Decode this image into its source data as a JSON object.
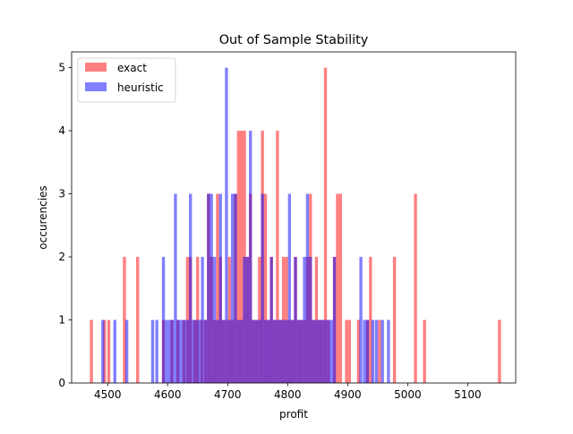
{
  "chart_data": {
    "type": "histogram",
    "title": "Out of Sample Stability",
    "xlabel": "profit",
    "ylabel": "occurencies",
    "xlim": [
      4440,
      5180
    ],
    "ylim": [
      0,
      5.25
    ],
    "xticks": [
      4500,
      4600,
      4700,
      4800,
      4900,
      5000,
      5100
    ],
    "yticks": [
      0,
      1,
      2,
      3,
      4,
      5
    ],
    "bin_width": 5,
    "grid": false,
    "legend_position": "top-left",
    "series": [
      {
        "name": "exact",
        "color": "#ff0000",
        "alpha": 0.5,
        "bins": [
          [
            4473,
            1
          ],
          [
            4495,
            1
          ],
          [
            4502,
            1
          ],
          [
            4528,
            2
          ],
          [
            4550,
            2
          ],
          [
            4593,
            1
          ],
          [
            4607,
            1
          ],
          [
            4617,
            1
          ],
          [
            4627,
            1
          ],
          [
            4633,
            2
          ],
          [
            4638,
            2
          ],
          [
            4645,
            1
          ],
          [
            4650,
            2
          ],
          [
            4657,
            1
          ],
          [
            4663,
            1
          ],
          [
            4668,
            3
          ],
          [
            4673,
            2
          ],
          [
            4678,
            1
          ],
          [
            4683,
            3
          ],
          [
            4688,
            2
          ],
          [
            4693,
            1
          ],
          [
            4698,
            1
          ],
          [
            4703,
            2
          ],
          [
            4708,
            1
          ],
          [
            4713,
            3
          ],
          [
            4718,
            4
          ],
          [
            4723,
            4
          ],
          [
            4728,
            4
          ],
          [
            4733,
            2
          ],
          [
            4738,
            3
          ],
          [
            4743,
            1
          ],
          [
            4748,
            1
          ],
          [
            4753,
            2
          ],
          [
            4758,
            4
          ],
          [
            4763,
            3
          ],
          [
            4768,
            1
          ],
          [
            4773,
            2
          ],
          [
            4778,
            1
          ],
          [
            4783,
            4
          ],
          [
            4788,
            1
          ],
          [
            4793,
            2
          ],
          [
            4798,
            2
          ],
          [
            4803,
            1
          ],
          [
            4808,
            1
          ],
          [
            4813,
            2
          ],
          [
            4818,
            1
          ],
          [
            4823,
            1
          ],
          [
            4828,
            1
          ],
          [
            4833,
            2
          ],
          [
            4838,
            3
          ],
          [
            4843,
            1
          ],
          [
            4848,
            2
          ],
          [
            4853,
            1
          ],
          [
            4858,
            1
          ],
          [
            4863,
            5
          ],
          [
            4868,
            1
          ],
          [
            4878,
            2
          ],
          [
            4883,
            3
          ],
          [
            4888,
            3
          ],
          [
            4898,
            1
          ],
          [
            4903,
            1
          ],
          [
            4918,
            1
          ],
          [
            4933,
            1
          ],
          [
            4938,
            2
          ],
          [
            4953,
            1
          ],
          [
            4978,
            2
          ],
          [
            5013,
            3
          ],
          [
            5028,
            1
          ],
          [
            5153,
            1
          ]
        ]
      },
      {
        "name": "heuristic",
        "color": "#0000ff",
        "alpha": 0.5,
        "bins": [
          [
            4492,
            1
          ],
          [
            4512,
            1
          ],
          [
            4532,
            1
          ],
          [
            4575,
            1
          ],
          [
            4582,
            1
          ],
          [
            4593,
            2
          ],
          [
            4598,
            1
          ],
          [
            4603,
            1
          ],
          [
            4608,
            1
          ],
          [
            4613,
            3
          ],
          [
            4618,
            1
          ],
          [
            4623,
            1
          ],
          [
            4628,
            1
          ],
          [
            4633,
            1
          ],
          [
            4638,
            3
          ],
          [
            4643,
            1
          ],
          [
            4648,
            1
          ],
          [
            4653,
            1
          ],
          [
            4658,
            2
          ],
          [
            4663,
            1
          ],
          [
            4668,
            3
          ],
          [
            4673,
            3
          ],
          [
            4678,
            2
          ],
          [
            4683,
            1
          ],
          [
            4688,
            3
          ],
          [
            4693,
            1
          ],
          [
            4698,
            5
          ],
          [
            4703,
            1
          ],
          [
            4708,
            3
          ],
          [
            4713,
            3
          ],
          [
            4718,
            1
          ],
          [
            4723,
            1
          ],
          [
            4728,
            2
          ],
          [
            4733,
            2
          ],
          [
            4738,
            4
          ],
          [
            4743,
            1
          ],
          [
            4748,
            1
          ],
          [
            4753,
            1
          ],
          [
            4758,
            3
          ],
          [
            4763,
            1
          ],
          [
            4768,
            1
          ],
          [
            4773,
            2
          ],
          [
            4778,
            1
          ],
          [
            4783,
            1
          ],
          [
            4788,
            1
          ],
          [
            4793,
            1
          ],
          [
            4798,
            1
          ],
          [
            4803,
            3
          ],
          [
            4808,
            1
          ],
          [
            4813,
            2
          ],
          [
            4818,
            1
          ],
          [
            4823,
            1
          ],
          [
            4828,
            2
          ],
          [
            4833,
            3
          ],
          [
            4838,
            2
          ],
          [
            4843,
            1
          ],
          [
            4848,
            1
          ],
          [
            4853,
            1
          ],
          [
            4858,
            1
          ],
          [
            4863,
            1
          ],
          [
            4868,
            1
          ],
          [
            4873,
            1
          ],
          [
            4878,
            2
          ],
          [
            4922,
            2
          ],
          [
            4928,
            1
          ],
          [
            4933,
            1
          ],
          [
            4942,
            1
          ],
          [
            4948,
            1
          ],
          [
            4958,
            1
          ],
          [
            4968,
            1
          ]
        ]
      }
    ]
  }
}
